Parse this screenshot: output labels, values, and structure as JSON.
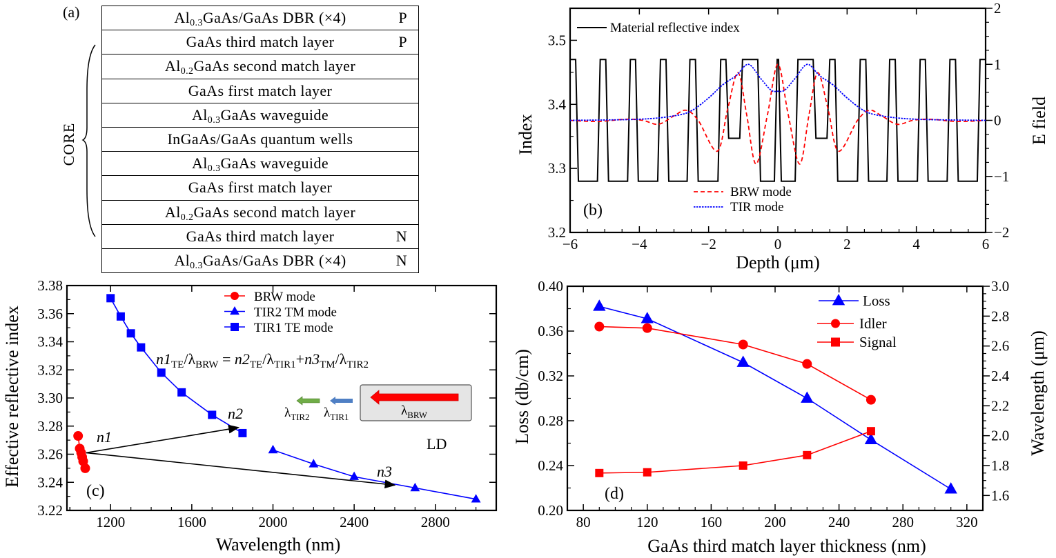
{
  "panel_a": {
    "label": "(a)",
    "core_label": "CORE",
    "layers": [
      {
        "pre": "Al",
        "sub": "0.3",
        "post": "GaAs/GaAs DBR (×4)",
        "doping": "P"
      },
      {
        "pre": "GaAs third match layer",
        "sub": "",
        "post": "",
        "doping": "P"
      },
      {
        "pre": "Al",
        "sub": "0.2",
        "post": "GaAs second match layer",
        "doping": ""
      },
      {
        "pre": "GaAs first match layer",
        "sub": "",
        "post": "",
        "doping": ""
      },
      {
        "pre": "Al",
        "sub": "0.3",
        "post": "GaAs waveguide",
        "doping": ""
      },
      {
        "pre": "InGaAs/GaAs quantum wells",
        "sub": "",
        "post": "",
        "doping": ""
      },
      {
        "pre": "Al",
        "sub": "0.3",
        "post": "GaAs waveguide",
        "doping": ""
      },
      {
        "pre": "GaAs first match layer",
        "sub": "",
        "post": "",
        "doping": ""
      },
      {
        "pre": "Al",
        "sub": "0.2",
        "post": "GaAs second match layer",
        "doping": ""
      },
      {
        "pre": "GaAs third match layer",
        "sub": "",
        "post": "",
        "doping": "N"
      },
      {
        "pre": "Al",
        "sub": "0.3",
        "post": "GaAs/GaAs DBR (×4)",
        "doping": "N"
      }
    ]
  },
  "chart_data": [
    {
      "id": "b",
      "type": "line",
      "panel_label": "(b)",
      "xlabel": "Depth (μm)",
      "ylabel": "Index",
      "y2label": "E field",
      "xlim": [
        -6,
        6
      ],
      "ylim": [
        3.2,
        3.55
      ],
      "y2lim": [
        -2,
        2
      ],
      "xticks": [
        -6,
        -4,
        -2,
        0,
        2,
        4,
        6
      ],
      "xtick_labels": [
        "−6",
        "−4",
        "−2",
        "0",
        "2",
        "4",
        "6"
      ],
      "yticks": [
        3.2,
        3.3,
        3.4,
        3.5
      ],
      "ytick_labels": [
        "3.2",
        "3.3",
        "3.4",
        "3.5"
      ],
      "y2ticks": [
        -2,
        -1,
        0,
        1,
        2
      ],
      "y2tick_labels": [
        "−2",
        "−1",
        "0",
        "1",
        "2"
      ],
      "legend": {
        "top": "Material reflective index",
        "bottom": [
          "BRW mode",
          "TIR mode"
        ]
      },
      "series": [
        {
          "name": "Material reflective index",
          "axis": "left",
          "color": "#000000",
          "style": "solid",
          "segments": [
            [
              -6,
              -5.8,
              3.47
            ],
            [
              -5.8,
              -5.17,
              3.28
            ],
            [
              -5.17,
              -4.93,
              3.47
            ],
            [
              -4.93,
              -4.3,
              3.28
            ],
            [
              -4.3,
              -4.07,
              3.47
            ],
            [
              -4.07,
              -3.43,
              3.28
            ],
            [
              -3.43,
              -3.19,
              3.47
            ],
            [
              -3.19,
              -2.58,
              3.28
            ],
            [
              -2.58,
              -2.34,
              3.47
            ],
            [
              -2.34,
              -1.69,
              3.28
            ],
            [
              -1.69,
              -1.46,
              3.47
            ],
            [
              -1.46,
              -1.06,
              3.347
            ],
            [
              -1.06,
              -0.54,
              3.47
            ],
            [
              -0.54,
              -0.06,
              3.28
            ],
            [
              -0.06,
              0.06,
              3.47
            ],
            [
              0.06,
              0.54,
              3.28
            ],
            [
              0.54,
              1.06,
              3.47
            ],
            [
              1.06,
              1.46,
              3.347
            ],
            [
              1.46,
              1.69,
              3.47
            ],
            [
              1.69,
              2.34,
              3.28
            ],
            [
              2.34,
              2.58,
              3.47
            ],
            [
              2.58,
              3.19,
              3.28
            ],
            [
              3.19,
              3.43,
              3.47
            ],
            [
              3.43,
              4.07,
              3.28
            ],
            [
              4.07,
              4.3,
              3.47
            ],
            [
              4.3,
              4.93,
              3.28
            ],
            [
              4.93,
              5.17,
              3.47
            ],
            [
              5.17,
              5.8,
              3.28
            ],
            [
              5.8,
              6,
              3.47
            ]
          ]
        },
        {
          "name": "BRW mode",
          "axis": "right",
          "color": "#ff0000",
          "style": "dashed",
          "x": [
            -6,
            -5.2,
            -4.4,
            -3.9,
            -3.45,
            -3.0,
            -2.65,
            -2.3,
            -1.75,
            -1.45,
            -1.15,
            -0.9,
            -0.63,
            -0.3,
            0,
            0.3,
            0.63,
            0.9,
            1.15,
            1.45,
            1.75,
            2.3,
            2.65,
            3.0,
            3.45,
            3.9,
            4.4,
            5.2,
            6
          ],
          "y": [
            0,
            -0.02,
            0.02,
            0,
            -0.07,
            0.08,
            0.18,
            0,
            -0.55,
            0.2,
            0.85,
            0.1,
            -0.78,
            0.1,
            1.0,
            0.1,
            -0.78,
            0.1,
            0.85,
            0.2,
            -0.55,
            0,
            0.18,
            0.08,
            -0.07,
            0,
            0.02,
            -0.02,
            0
          ]
        },
        {
          "name": "TIR mode",
          "axis": "right",
          "color": "#0000ff",
          "style": "dotted",
          "x": [
            -6,
            -4,
            -3,
            -2.5,
            -2,
            -1.6,
            -1.2,
            -0.85,
            -0.5,
            -0.2,
            0,
            0.2,
            0.5,
            0.85,
            1.2,
            1.6,
            2,
            2.5,
            3,
            4,
            6
          ],
          "y": [
            0,
            0.02,
            0.08,
            0.17,
            0.4,
            0.63,
            0.8,
            1.0,
            0.75,
            0.54,
            0.52,
            0.54,
            0.75,
            1.0,
            0.8,
            0.63,
            0.4,
            0.17,
            0.08,
            0.02,
            0
          ]
        }
      ]
    },
    {
      "id": "c",
      "type": "line",
      "panel_label": "(c)",
      "xlabel": "Wavelength (nm)",
      "ylabel": "Effective reflective index",
      "xlim": [
        985,
        3100
      ],
      "ylim": [
        3.22,
        3.38
      ],
      "xticks": [
        1200,
        1600,
        2000,
        2400,
        2800
      ],
      "xtick_labels": [
        "1200",
        "1600",
        "2000",
        "2400",
        "2800"
      ],
      "yticks": [
        3.22,
        3.24,
        3.26,
        3.28,
        3.3,
        3.32,
        3.34,
        3.36,
        3.38
      ],
      "ytick_labels": [
        "3.22",
        "3.24",
        "3.26",
        "3.28",
        "3.30",
        "3.32",
        "3.34",
        "3.36",
        "3.38"
      ],
      "legend_placement": "top-center",
      "series": [
        {
          "name": "BRW mode",
          "color": "#ff0000",
          "marker": "circle",
          "x": [
            1040,
            1048,
            1055,
            1060,
            1065,
            1075
          ],
          "y": [
            3.273,
            3.264,
            3.261,
            3.258,
            3.255,
            3.25
          ]
        },
        {
          "name": "TIR2 TM mode",
          "color": "#0000ff",
          "marker": "triangle",
          "x": [
            2000,
            2200,
            2400,
            2700,
            3000
          ],
          "y": [
            3.263,
            3.253,
            3.244,
            3.236,
            3.228
          ]
        },
        {
          "name": "TIR1 TE mode",
          "color": "#0000ff",
          "marker": "square",
          "x": [
            1200,
            1250,
            1300,
            1350,
            1450,
            1550,
            1700,
            1850
          ],
          "y": [
            3.371,
            3.358,
            3.346,
            3.336,
            3.318,
            3.304,
            3.288,
            3.275
          ]
        }
      ],
      "annotations": {
        "equation": [
          {
            "t": "n1",
            "i": true
          },
          {
            "s": "TE"
          },
          {
            "t": "/λ"
          },
          {
            "s": "BRW"
          },
          {
            "t": " = "
          },
          {
            "t": "n2",
            "i": true
          },
          {
            "s": "TE"
          },
          {
            "t": "/λ"
          },
          {
            "s": "TIR1"
          },
          {
            "t": "+"
          },
          {
            "t": "n3",
            "i": true
          },
          {
            "s": "TM"
          },
          {
            "t": "/λ"
          },
          {
            "s": "TIR2"
          }
        ],
        "n1": "n1",
        "n2": "n2",
        "n3": "n3",
        "ld": "LD",
        "arrows": [
          {
            "from": [
              1080,
              3.261
            ],
            "to": [
              1830,
              3.279
            ]
          },
          {
            "from": [
              1080,
              3.261
            ],
            "to": [
              2600,
              3.238
            ]
          }
        ],
        "inset": {
          "brw": {
            "main": "λ",
            "sub": "BRW",
            "color": "#ff0000"
          },
          "tir1": {
            "main": "λ",
            "sub": "TIR1",
            "color": "#4f7fc4"
          },
          "tir2": {
            "main": "λ",
            "sub": "TIR2",
            "color": "#70ad47"
          },
          "box_color": "#e5e5e5"
        }
      }
    },
    {
      "id": "d",
      "type": "line",
      "panel_label": "(d)",
      "xlabel": "GaAs third match layer thickness (nm)",
      "ylabel": "Loss (db/cm)",
      "y2label": "Wavelength (μm)",
      "xlim": [
        70,
        330
      ],
      "ylim": [
        0.2,
        0.4
      ],
      "y2lim": [
        1.5,
        3.0
      ],
      "xticks": [
        80,
        120,
        160,
        200,
        240,
        280,
        320
      ],
      "xtick_labels": [
        "80",
        "120",
        "160",
        "200",
        "240",
        "280",
        "320"
      ],
      "yticks": [
        0.2,
        0.24,
        0.28,
        0.32,
        0.36,
        0.4
      ],
      "ytick_labels": [
        "0.20",
        "0.24",
        "0.28",
        "0.32",
        "0.36",
        "0.40"
      ],
      "y2ticks": [
        1.6,
        1.8,
        2.0,
        2.2,
        2.4,
        2.6,
        2.8,
        3.0
      ],
      "y2tick_labels": [
        "1.6",
        "1.8",
        "2.0",
        "2.2",
        "2.4",
        "2.6",
        "2.8",
        "3.0"
      ],
      "legend_placement": "top-right",
      "series": [
        {
          "name": "Loss",
          "axis": "left",
          "color": "#0000ff",
          "marker": "triangle",
          "x": [
            90,
            120,
            180,
            220,
            260,
            310
          ],
          "y": [
            0.382,
            0.371,
            0.332,
            0.3,
            0.263,
            0.219
          ]
        },
        {
          "name": "Idler",
          "axis": "right",
          "color": "#ff0000",
          "marker": "circle",
          "x": [
            90,
            120,
            180,
            220,
            260
          ],
          "y": [
            2.73,
            2.72,
            2.61,
            2.48,
            2.24
          ]
        },
        {
          "name": "Signal",
          "axis": "right",
          "color": "#ff0000",
          "marker": "square",
          "x": [
            90,
            120,
            180,
            220,
            260
          ],
          "y": [
            1.75,
            1.755,
            1.8,
            1.87,
            2.03
          ]
        }
      ]
    }
  ]
}
